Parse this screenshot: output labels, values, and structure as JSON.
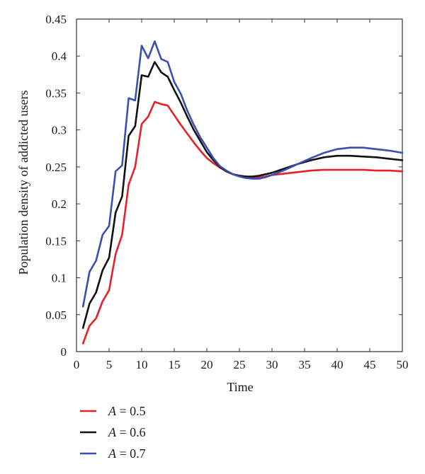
{
  "chart_data": {
    "type": "line",
    "title": "",
    "xlabel": "Time",
    "ylabel": "Population density of addicted users",
    "xlim": [
      0,
      50
    ],
    "ylim": [
      0,
      0.45
    ],
    "xticks": [
      0,
      5,
      10,
      15,
      20,
      25,
      30,
      35,
      40,
      45,
      50
    ],
    "yticks": [
      0,
      0.05,
      0.1,
      0.15,
      0.2,
      0.25,
      0.3,
      0.35,
      0.4,
      0.45
    ],
    "xtick_labels": [
      "0",
      "5",
      "10",
      "15",
      "20",
      "25",
      "30",
      "35",
      "40",
      "45",
      "50"
    ],
    "ytick_labels": [
      "0",
      "0.05",
      "0.1",
      "0.15",
      "0.2",
      "0.25",
      "0.3",
      "0.35",
      "0.4",
      "0.45"
    ],
    "grid": false,
    "legend_position": "bottom-left, outside plot",
    "series": [
      {
        "name": "A = 0.5",
        "legend_var": "A",
        "legend_rest": " = 0.5",
        "color": "#e8202a",
        "x": [
          1,
          2,
          3,
          4,
          5,
          6,
          7,
          8,
          9,
          10,
          11,
          12,
          13,
          14,
          15,
          16,
          17,
          18,
          19,
          20,
          21,
          22,
          23,
          24,
          25,
          26,
          27,
          28,
          29,
          30,
          32,
          34,
          36,
          38,
          40,
          42,
          44,
          46,
          48,
          50
        ],
        "values": [
          0.011,
          0.035,
          0.045,
          0.068,
          0.083,
          0.132,
          0.158,
          0.226,
          0.25,
          0.308,
          0.318,
          0.338,
          0.335,
          0.333,
          0.32,
          0.307,
          0.295,
          0.283,
          0.272,
          0.262,
          0.255,
          0.249,
          0.244,
          0.24,
          0.238,
          0.237,
          0.236,
          0.236,
          0.237,
          0.239,
          0.241,
          0.243,
          0.245,
          0.246,
          0.246,
          0.246,
          0.246,
          0.245,
          0.245,
          0.244
        ]
      },
      {
        "name": "A = 0.6",
        "legend_var": "A",
        "legend_rest": " = 0.6",
        "color": "#111111",
        "x": [
          1,
          2,
          3,
          4,
          5,
          6,
          7,
          8,
          9,
          10,
          11,
          12,
          13,
          14,
          15,
          16,
          17,
          18,
          19,
          20,
          21,
          22,
          23,
          24,
          25,
          26,
          27,
          28,
          29,
          30,
          32,
          34,
          36,
          38,
          40,
          42,
          44,
          46,
          48,
          50
        ],
        "values": [
          0.032,
          0.065,
          0.08,
          0.11,
          0.127,
          0.188,
          0.21,
          0.292,
          0.305,
          0.374,
          0.372,
          0.392,
          0.378,
          0.372,
          0.354,
          0.337,
          0.318,
          0.3,
          0.285,
          0.27,
          0.259,
          0.25,
          0.244,
          0.24,
          0.238,
          0.237,
          0.237,
          0.238,
          0.24,
          0.242,
          0.248,
          0.254,
          0.259,
          0.263,
          0.265,
          0.265,
          0.264,
          0.263,
          0.261,
          0.259
        ]
      },
      {
        "name": "A = 0.7",
        "legend_var": "A",
        "legend_rest": " = 0.7",
        "color": "#3a4fb0",
        "x": [
          1,
          2,
          3,
          4,
          5,
          6,
          7,
          8,
          9,
          10,
          11,
          12,
          13,
          14,
          15,
          16,
          17,
          18,
          19,
          20,
          21,
          22,
          23,
          24,
          25,
          26,
          27,
          28,
          29,
          30,
          32,
          34,
          36,
          38,
          40,
          42,
          44,
          46,
          48,
          50
        ],
        "values": [
          0.061,
          0.108,
          0.123,
          0.158,
          0.17,
          0.244,
          0.252,
          0.343,
          0.34,
          0.414,
          0.397,
          0.42,
          0.396,
          0.392,
          0.365,
          0.349,
          0.326,
          0.307,
          0.29,
          0.276,
          0.262,
          0.251,
          0.245,
          0.24,
          0.237,
          0.235,
          0.234,
          0.234,
          0.236,
          0.239,
          0.246,
          0.254,
          0.262,
          0.269,
          0.274,
          0.276,
          0.276,
          0.274,
          0.272,
          0.269
        ]
      }
    ]
  }
}
